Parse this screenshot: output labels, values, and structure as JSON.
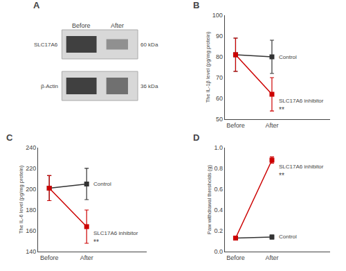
{
  "chart_data": [
    {
      "type": "western_blot",
      "panel_label": "A",
      "categories": [
        "Before",
        "After"
      ],
      "color": "#d8d8d8",
      "rows": [
        {
          "name": "SLC17A6",
          "label": "60 kDa",
          "colors": [
            "#404040",
            "#909090"
          ]
        },
        {
          "name": "β-Actin",
          "label": "36 kDa",
          "colors": [
            "#404040",
            "#707070"
          ]
        }
      ]
    },
    {
      "type": "line",
      "panel_label": "B",
      "categories": [
        "Before",
        "After"
      ],
      "ylabel": "The IL-1β level (pg/mg protein)",
      "ylim": [
        50,
        100
      ],
      "yticks": [
        50,
        60,
        70,
        80,
        90,
        100
      ],
      "grid": false,
      "series": [
        {
          "name": "Control",
          "color": "#333333",
          "marker": "square",
          "values": [
            81,
            80
          ],
          "errors": [
            8,
            8
          ]
        },
        {
          "name": "SLC17A6 inhibitor",
          "color": "#cc0000",
          "marker": "square",
          "values": [
            81,
            62
          ],
          "errors": [
            8,
            8
          ],
          "annotation": "**"
        }
      ]
    },
    {
      "type": "line",
      "panel_label": "C",
      "categories": [
        "Before",
        "After"
      ],
      "ylabel": "The IL-6 level (pg/mg protein)",
      "ylim": [
        140,
        240
      ],
      "yticks": [
        140,
        160,
        180,
        200,
        220,
        240
      ],
      "grid": false,
      "series": [
        {
          "name": "Control",
          "color": "#333333",
          "marker": "square",
          "values": [
            201,
            205
          ],
          "errors": [
            12,
            15
          ]
        },
        {
          "name": "SLC17A6 inhibitor",
          "color": "#cc0000",
          "marker": "square",
          "values": [
            201,
            164
          ],
          "errors": [
            12,
            16
          ],
          "annotation": "**"
        }
      ]
    },
    {
      "type": "line",
      "panel_label": "D",
      "categories": [
        "Before",
        "After"
      ],
      "ylabel": "Paw withdrawal thresholds (g)",
      "ylim": [
        0.0,
        1.0
      ],
      "yticks": [
        {
          "value": 0,
          "label": "0.0"
        },
        0.2,
        0.4,
        0.6,
        0.8,
        {
          "value": 1,
          "label": "1.0"
        }
      ],
      "grid": false,
      "series": [
        {
          "name": "Control",
          "color": "#333333",
          "marker": "square",
          "values": [
            0.13,
            0.14
          ],
          "errors": [
            0.02,
            0.02
          ]
        },
        {
          "name": "SLC17A6 inhibitor",
          "color": "#cc0000",
          "marker": "square",
          "values": [
            0.13,
            0.88
          ],
          "errors": [
            0.02,
            0.03
          ],
          "annotation": "**"
        }
      ]
    }
  ]
}
